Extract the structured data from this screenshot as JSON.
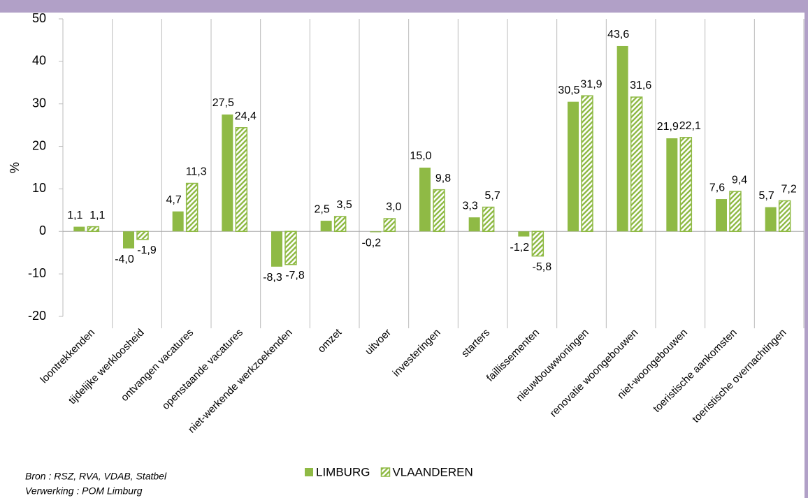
{
  "chart_data": {
    "type": "bar",
    "categories": [
      "loontrekkenden",
      "tijdelijke werkloosheid",
      "ontvangen vacatures",
      "openstaande vacatures",
      "niet-werkende werkzoekenden",
      "omzet",
      "uitvoer",
      "investeringen",
      "starters",
      "faillissementen",
      "nieuwbouwwoningen",
      "renovatie woongebouwen",
      "niet-woongebouwen",
      "toeristische aankomsten",
      "toeristische overnachtingen"
    ],
    "series": [
      {
        "name": "LIMBURG",
        "color": "#8fba45",
        "pattern": "solid",
        "values": [
          1.1,
          -4.0,
          4.7,
          27.5,
          -8.3,
          2.5,
          -0.2,
          15.0,
          3.3,
          -1.2,
          30.5,
          43.6,
          21.9,
          7.6,
          5.7
        ],
        "value_labels": [
          "1,1",
          "-4,0",
          "4,7",
          "27,5",
          "-8,3",
          "2,5",
          "-0,2",
          "15,0",
          "3,3",
          "-1,2",
          "30,5",
          "43,6",
          "21,9",
          "7,6",
          "5,7"
        ]
      },
      {
        "name": "VLAANDEREN",
        "color": "#8fba45",
        "pattern": "hatched",
        "values": [
          1.1,
          -1.9,
          11.3,
          24.4,
          -7.8,
          3.5,
          3.0,
          9.8,
          5.7,
          -5.8,
          31.9,
          31.6,
          22.1,
          9.4,
          7.2
        ],
        "value_labels": [
          "1,1",
          "-1,9",
          "11,3",
          "24,4",
          "-7,8",
          "3,5",
          "3,0",
          "9,8",
          "5,7",
          "-5,8",
          "31,9",
          "31,6",
          "22,1",
          "9,4",
          "7,2"
        ]
      }
    ],
    "ylabel": "%",
    "ylim": [
      -20,
      50
    ],
    "yticks": [
      -20,
      -10,
      0,
      10,
      20,
      30,
      40,
      50
    ],
    "legend": "bottom",
    "notes": [
      "Bron : RSZ, RVA, VDAB, Statbel",
      "Verwerking : POM Limburg"
    ]
  }
}
